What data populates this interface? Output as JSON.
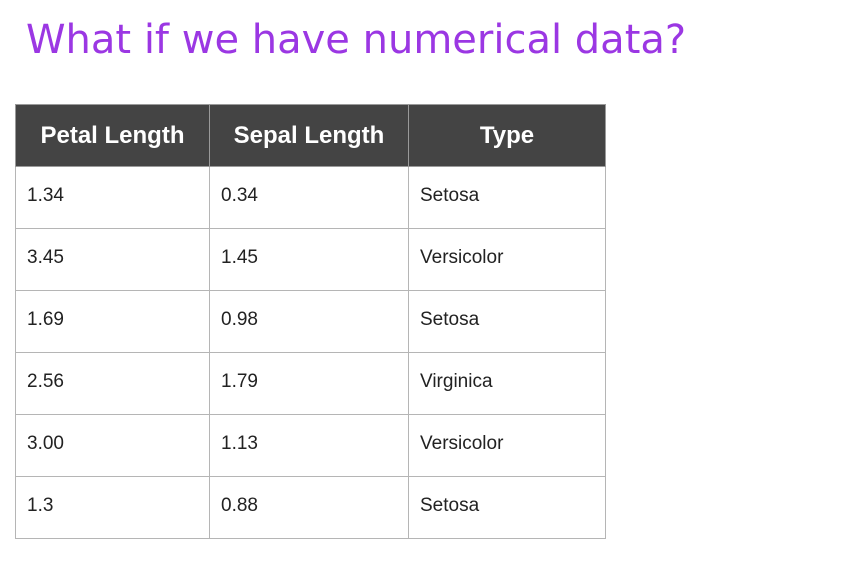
{
  "slide": {
    "title": "What if we have numerical data?",
    "title_color": "#9b37e3"
  },
  "table": {
    "header_bg": "#444444",
    "headers": [
      "Petal Length",
      "Sepal Length",
      "Type"
    ],
    "rows": [
      [
        "1.34",
        "0.34",
        "Setosa"
      ],
      [
        "3.45",
        "1.45",
        "Versicolor"
      ],
      [
        "1.69",
        "0.98",
        "Setosa"
      ],
      [
        "2.56",
        "1.79",
        "Virginica"
      ],
      [
        "3.00",
        "1.13",
        "Versicolor"
      ],
      [
        "1.3",
        "0.88",
        "Setosa"
      ]
    ]
  }
}
